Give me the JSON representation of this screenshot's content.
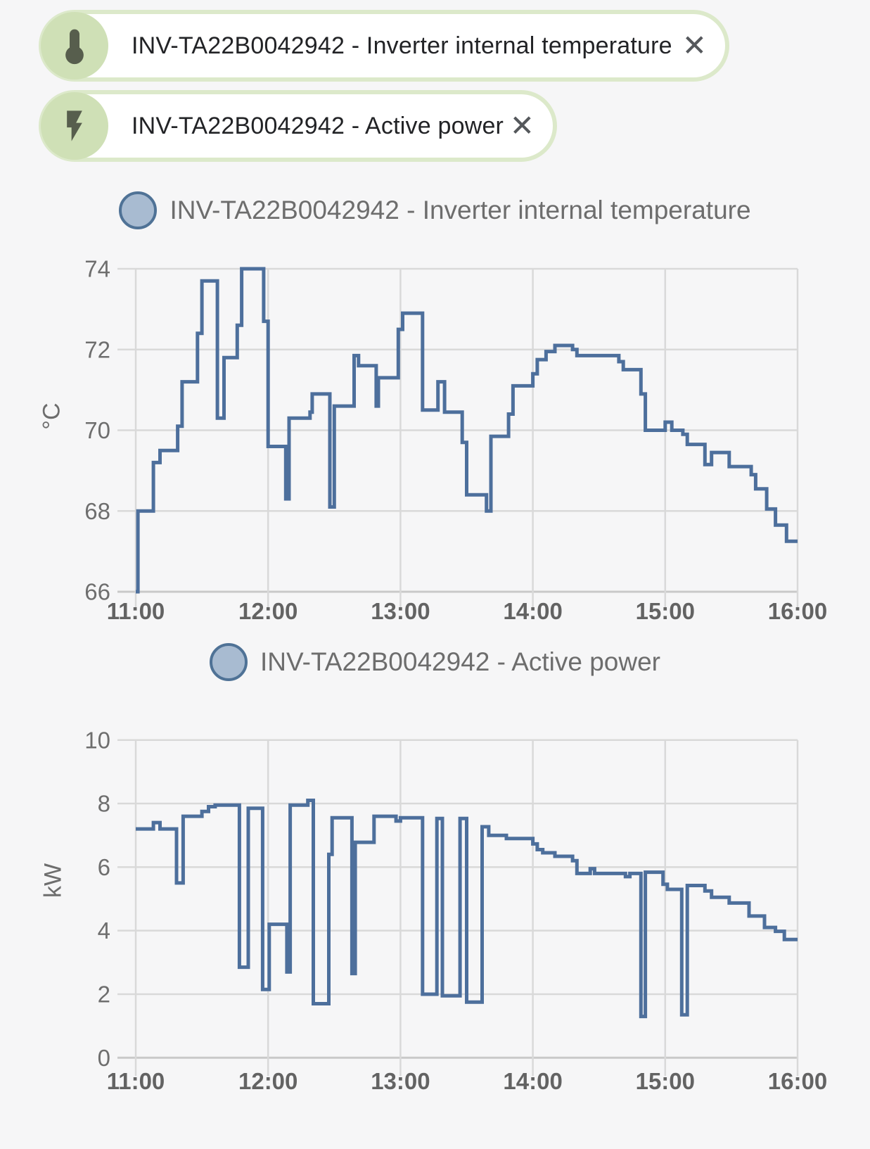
{
  "chips": [
    {
      "label": "INV-TA22B0042942 - Inverter internal temperature",
      "icon": "thermometer",
      "close_glyph": "✕"
    },
    {
      "label": "INV-TA22B0042942 - Active power",
      "icon": "lightning-bolt",
      "close_glyph": "✕"
    }
  ],
  "colors": {
    "page_background": "#f6f6f7",
    "chip_border": "#dce9ca",
    "chip_cap": "#cfe0b6",
    "chip_icon": "#575e4d",
    "series_line": "#4d6f9c",
    "legend_fill": "#a8bbd1",
    "legend_border": "#4f7296",
    "gridline": "#d9d9d9",
    "axis_line": "#c9c9c9",
    "tick_label": "#6e6e6e",
    "title_text": "#6d6d6d"
  },
  "chart_data": [
    {
      "type": "line",
      "subtype": "step-after",
      "title": "INV-TA22B0042942 - Inverter internal temperature",
      "ylabel": "°C",
      "xlabel": "",
      "x_ticks": [
        "11:00",
        "12:00",
        "13:00",
        "14:00",
        "15:00",
        "16:00"
      ],
      "y_ticks": [
        66,
        68,
        70,
        72,
        74
      ],
      "ylim": [
        66,
        74
      ],
      "xlim_minutes": [
        0,
        300
      ],
      "grid": true,
      "legend_position": "top",
      "series": [
        {
          "name": "INV-TA22B0042942 - Inverter internal temperature",
          "unit": "°C",
          "points_min_value": [
            [
              0,
              66
            ],
            [
              1,
              68
            ],
            [
              8,
              69.2
            ],
            [
              11,
              69.5
            ],
            [
              19,
              70.1
            ],
            [
              21,
              71.2
            ],
            [
              28,
              72.4
            ],
            [
              30,
              73.7
            ],
            [
              37,
              70.3
            ],
            [
              40,
              71.8
            ],
            [
              46,
              72.6
            ],
            [
              48,
              74
            ],
            [
              58,
              72.7
            ],
            [
              60,
              69.6
            ],
            [
              68,
              68.3
            ],
            [
              69.5,
              70.3
            ],
            [
              79,
              70.45
            ],
            [
              80,
              70.9
            ],
            [
              88,
              68.1
            ],
            [
              90,
              70.6
            ],
            [
              99,
              71.85
            ],
            [
              101,
              71.6
            ],
            [
              109,
              70.6
            ],
            [
              110,
              71.3
            ],
            [
              119,
              72.5
            ],
            [
              121,
              72.9
            ],
            [
              130,
              70.5
            ],
            [
              137,
              71.2
            ],
            [
              140,
              70.45
            ],
            [
              148,
              69.7
            ],
            [
              150,
              68.4
            ],
            [
              159,
              68
            ],
            [
              161,
              69.85
            ],
            [
              169,
              70.4
            ],
            [
              171,
              71.1
            ],
            [
              180,
              71.4
            ],
            [
              182,
              71.75
            ],
            [
              186,
              71.95
            ],
            [
              190,
              72.1
            ],
            [
              198,
              72
            ],
            [
              200,
              71.85
            ],
            [
              219,
              71.7
            ],
            [
              221,
              71.5
            ],
            [
              229,
              70.9
            ],
            [
              231,
              70
            ],
            [
              240,
              70.2
            ],
            [
              243,
              70
            ],
            [
              248,
              69.9
            ],
            [
              250,
              69.65
            ],
            [
              258,
              69.15
            ],
            [
              261,
              69.45
            ],
            [
              269,
              69.1
            ],
            [
              279,
              68.9
            ],
            [
              281,
              68.55
            ],
            [
              286,
              68.05
            ],
            [
              290,
              67.65
            ],
            [
              295,
              67.25
            ]
          ]
        }
      ]
    },
    {
      "type": "line",
      "subtype": "step-after",
      "title": "INV-TA22B0042942 - Active power",
      "ylabel": "kW",
      "xlabel": "",
      "x_ticks": [
        "11:00",
        "12:00",
        "13:00",
        "14:00",
        "15:00",
        "16:00"
      ],
      "y_ticks": [
        0,
        2,
        4,
        6,
        8,
        10
      ],
      "ylim": [
        0,
        10
      ],
      "xlim_minutes": [
        0,
        300
      ],
      "grid": true,
      "legend_position": "top",
      "series": [
        {
          "name": "INV-TA22B0042942 - Active power",
          "unit": "kW",
          "points_min_value": [
            [
              0,
              7.2
            ],
            [
              8,
              7.4
            ],
            [
              11,
              7.2
            ],
            [
              18.5,
              5.5
            ],
            [
              21.5,
              7.6
            ],
            [
              30,
              7.75
            ],
            [
              33,
              7.9
            ],
            [
              36,
              7.95
            ],
            [
              47,
              2.85
            ],
            [
              51,
              7.85
            ],
            [
              57.5,
              2.15
            ],
            [
              60.5,
              4.2
            ],
            [
              68.5,
              2.7
            ],
            [
              70,
              7.95
            ],
            [
              78,
              8.1
            ],
            [
              80.5,
              1.7
            ],
            [
              87.5,
              6.4
            ],
            [
              89,
              7.55
            ],
            [
              98,
              2.65
            ],
            [
              99.5,
              6.78
            ],
            [
              108,
              7.6
            ],
            [
              118,
              7.45
            ],
            [
              120,
              7.55
            ],
            [
              130,
              2
            ],
            [
              136.5,
              7.53
            ],
            [
              139,
              1.95
            ],
            [
              147,
              7.53
            ],
            [
              150,
              1.75
            ],
            [
              157,
              7.27
            ],
            [
              160,
              7
            ],
            [
              168,
              6.9
            ],
            [
              180,
              6.73
            ],
            [
              182,
              6.55
            ],
            [
              184.5,
              6.45
            ],
            [
              190,
              6.34
            ],
            [
              198,
              6.2
            ],
            [
              200,
              5.8
            ],
            [
              206,
              5.95
            ],
            [
              208,
              5.8
            ],
            [
              222,
              5.7
            ],
            [
              224,
              5.8
            ],
            [
              229,
              1.3
            ],
            [
              231,
              5.84
            ],
            [
              239,
              5.46
            ],
            [
              241,
              5.3
            ],
            [
              247.5,
              1.35
            ],
            [
              250,
              5.42
            ],
            [
              258,
              5.25
            ],
            [
              261,
              5.05
            ],
            [
              269,
              4.87
            ],
            [
              278,
              4.46
            ],
            [
              285,
              4.1
            ],
            [
              290,
              3.98
            ],
            [
              294,
              3.72
            ]
          ]
        }
      ]
    }
  ]
}
